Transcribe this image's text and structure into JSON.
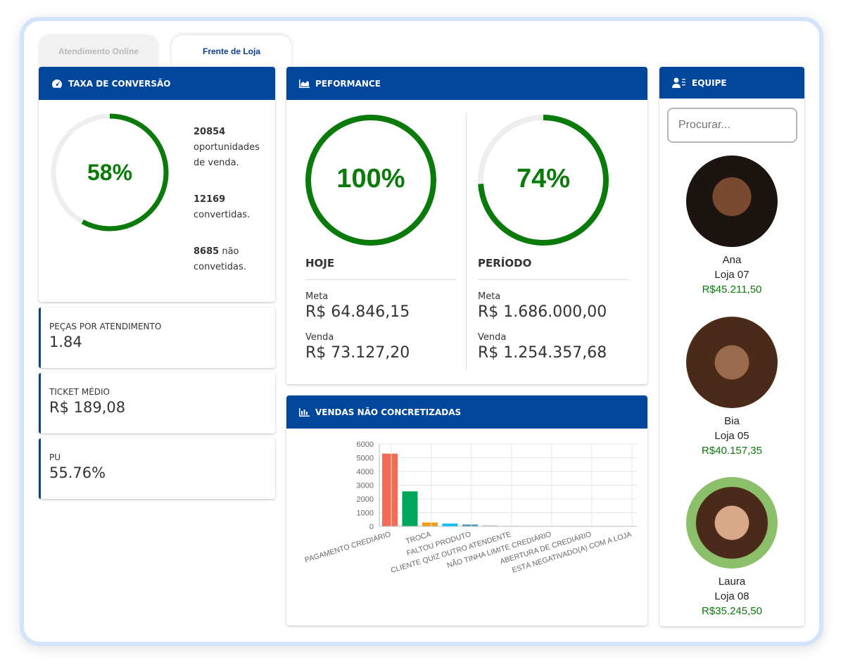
{
  "tabs": [
    "Atendimento Online",
    "Frente de Loja"
  ],
  "conversion": {
    "title": "TAXA DE CONVERSÃO",
    "percent": "58%",
    "percent_value": 58,
    "opportunities": "20854",
    "opportunities_label_1": "oportunidades",
    "opportunities_label_2": "de venda.",
    "converted": "12169",
    "converted_label": "convertidas.",
    "not_converted": "8685",
    "not_converted_label_1": "não",
    "not_converted_label_2": "convetidas."
  },
  "stats": [
    {
      "label": "PEÇAS POR ATENDIMENTO",
      "value": "1.84"
    },
    {
      "label": "TICKET MÉDIO",
      "value": "R$ 189,08"
    },
    {
      "label": "PU",
      "value": "55.76%"
    }
  ],
  "performance": {
    "title": "PEFORMANCE",
    "today": {
      "percent": "100%",
      "percent_value": 100,
      "title": "HOJE",
      "meta_label": "Meta",
      "meta": "R$ 64.846,15",
      "sale_label": "Venda",
      "sale": "R$ 73.127,20"
    },
    "period": {
      "percent": "74%",
      "percent_value": 74,
      "title": "PERÍODO",
      "meta_label": "Meta",
      "meta": "R$ 1.686.000,00",
      "sale_label": "Venda",
      "sale": "R$ 1.254.357,68"
    }
  },
  "lost_sales": {
    "title": "VENDAS NÃO CONCRETIZADAS"
  },
  "chart_data": {
    "type": "bar",
    "title": "VENDAS NÃO CONCRETIZADAS",
    "ylim": [
      0,
      6000
    ],
    "yticks": [
      "0",
      "1000",
      "2000",
      "3000",
      "4000",
      "5000",
      "6000"
    ],
    "categories": [
      "PAGAMENTO CREDIÁRIO",
      "TROCA",
      "FALTOU PRODUTO",
      "CLIENTE QUIZ OUTRO ATENDENTE",
      "NÃO TINHA LIMITE CREDIÁRIO",
      "ABERTURA DE CREDIÁRIO",
      "ESTÁ NEGATIVADO(A) COM A LOJA"
    ],
    "values": [
      5300,
      2550,
      280,
      200,
      130,
      90,
      40
    ],
    "colors": [
      "#f36a55",
      "#00a65a",
      "#f39c12",
      "#00c0ef",
      "#3c8dbc",
      "#d2d6de",
      "#d2d6de"
    ],
    "grid": true
  },
  "team": {
    "title": "EQUIPE",
    "search_placeholder": "Procurar...",
    "members": [
      {
        "name": "Ana",
        "store": "Loja 07",
        "amount": "R$45.211,50"
      },
      {
        "name": "Bia",
        "store": "Loja 05",
        "amount": "R$40.157,35"
      },
      {
        "name": "Laura",
        "store": "Loja 08",
        "amount": "R$35.245,50"
      }
    ]
  }
}
